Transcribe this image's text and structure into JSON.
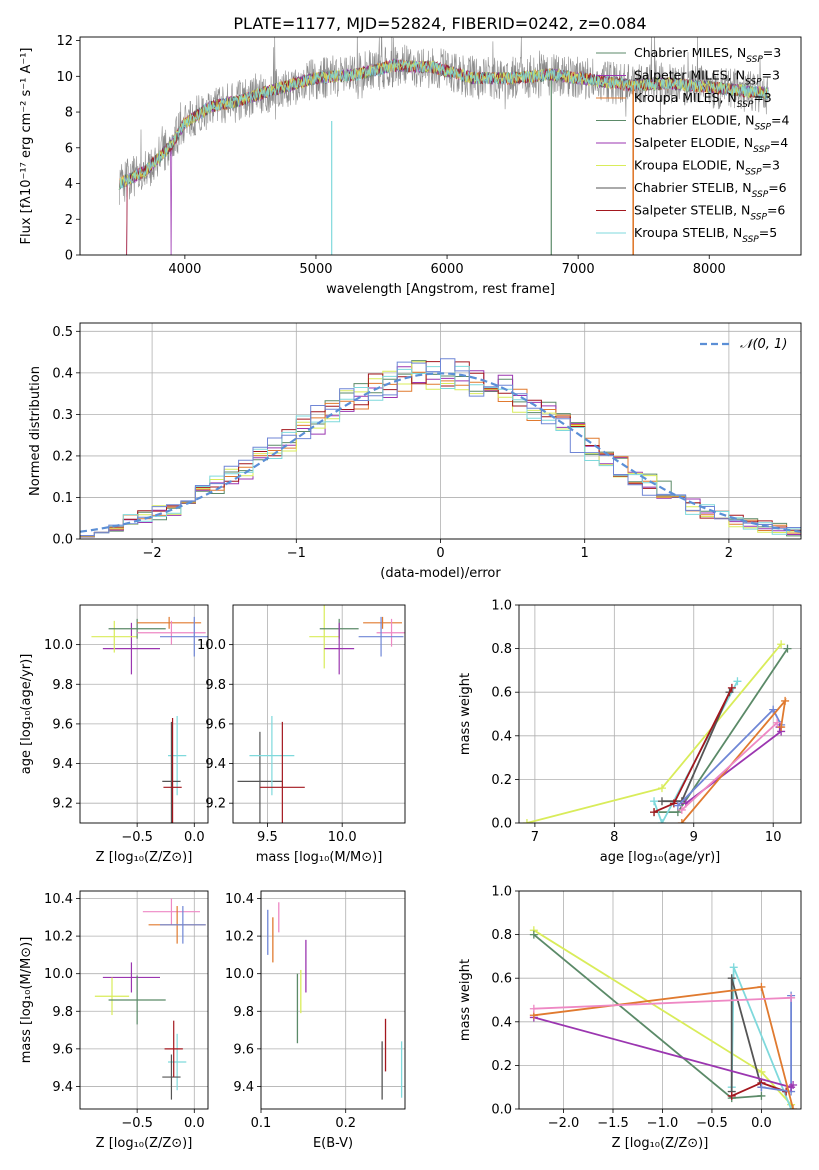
{
  "figure": {
    "title": "PLATE=1177, MJD=52824, FIBERID=0242, z=0.084"
  },
  "chart_data": [
    {
      "id": "spectrum",
      "type": "line",
      "xlabel": "wavelength [Angstrom, rest frame]",
      "ylabel": "Flux [fλ10⁻¹⁷ erg cm⁻² s⁻¹ A⁻¹]",
      "xlim": [
        3200,
        8700
      ],
      "ylim": [
        0,
        12.2
      ],
      "xticks": [
        4000,
        5000,
        6000,
        7000,
        8000
      ],
      "yticks": [
        0,
        2,
        4,
        6,
        8,
        10,
        12
      ],
      "grid": false,
      "legend_position": "right",
      "series": [
        {
          "name": "Chabrier MILES, N_SSP=3",
          "color": "#5b8a68"
        },
        {
          "name": "Salpeter MILES, N_SSP=3",
          "color": "#9b36b0"
        },
        {
          "name": "Kroupa MILES, N_SSP=3",
          "color": "#e07a2f"
        },
        {
          "name": "Chabrier ELODIE, N_SSP=4",
          "color": "#5b8a68"
        },
        {
          "name": "Salpeter ELODIE, N_SSP=4",
          "color": "#9b36b0"
        },
        {
          "name": "Kroupa ELODIE, N_SSP=3",
          "color": "#d9ec5a"
        },
        {
          "name": "Chabrier STELIB, N_SSP=6",
          "color": "#555555"
        },
        {
          "name": "Salpeter STELIB, N_SSP=6",
          "color": "#a3171e"
        },
        {
          "name": "Kroupa STELIB, N_SSP=5",
          "color": "#7fd9dc"
        }
      ],
      "continuum_shape": {
        "x": [
          3500,
          3700,
          3900,
          4000,
          4200,
          4400,
          4700,
          5000,
          5300,
          5600,
          5900,
          6200,
          6500,
          6800,
          7100,
          7400,
          7700,
          8000,
          8250,
          8500
        ],
        "y": [
          4.0,
          4.7,
          6.2,
          7.4,
          8.3,
          8.6,
          9.3,
          9.9,
          10.1,
          10.6,
          10.5,
          9.9,
          9.9,
          10.1,
          9.8,
          9.5,
          9.6,
          9.4,
          9.2,
          9.0
        ]
      }
    },
    {
      "id": "residuals",
      "type": "line",
      "xlabel": "(data-model)/error",
      "ylabel": "Normed distribution",
      "xlim": [
        -2.5,
        2.5
      ],
      "ylim": [
        0,
        0.52
      ],
      "xticks": [
        -2,
        -1,
        0,
        1,
        2
      ],
      "yticks": [
        0.0,
        0.1,
        0.2,
        0.3,
        0.4,
        0.5
      ],
      "grid": true,
      "legend": [
        "𝒩(0, 1)"
      ],
      "legend_position": "top-right",
      "gaussian": {
        "mean": 0,
        "sigma": 1,
        "color": "#5b8fd6"
      },
      "histogram_colors": [
        "#5b8a68",
        "#9b36b0",
        "#e07a2f",
        "#d9ec5a",
        "#a3171e",
        "#7fd9dc",
        "#6f86d6"
      ]
    },
    {
      "id": "age_vs_Z",
      "type": "scatter",
      "xlabel": "Z [log₁₀(Z/Z⊙)]",
      "ylabel": "age  [log₁₀(age/yr)]",
      "xlim": [
        -1.0,
        0.12
      ],
      "ylim": [
        9.1,
        10.2
      ],
      "xticks": [
        -0.5,
        0.0
      ],
      "yticks": [
        9.2,
        9.4,
        9.6,
        9.8,
        10.0
      ],
      "grid": true,
      "points": [
        {
          "x": -0.55,
          "y": 9.98,
          "xerr": 0.25,
          "yerr": 0.13,
          "color": "#9b36b0"
        },
        {
          "x": -0.7,
          "y": 10.04,
          "xerr": 0.2,
          "yerr": 0.08,
          "color": "#d9ec5a"
        },
        {
          "x": -0.5,
          "y": 10.08,
          "xerr": 0.25,
          "yerr": 0.05,
          "color": "#5b8a68"
        },
        {
          "x": -0.22,
          "y": 10.11,
          "xerr": 0.28,
          "yerr": 0.03,
          "color": "#e07a2f"
        },
        {
          "x": -0.2,
          "y": 10.06,
          "xerr": 0.3,
          "yerr": 0.06,
          "color": "#ee88c4"
        },
        {
          "x": 0.0,
          "y": 10.04,
          "xerr": 0.3,
          "yerr": 0.1,
          "color": "#6f86d6"
        },
        {
          "x": -0.15,
          "y": 9.44,
          "xerr": 0.08,
          "yerr": 0.2,
          "color": "#7fd9dc"
        },
        {
          "x": -0.2,
          "y": 9.31,
          "xerr": 0.08,
          "yerr": 0.3,
          "color": "#555555"
        },
        {
          "x": -0.19,
          "y": 9.28,
          "xerr": 0.08,
          "yerr": 0.35,
          "color": "#a3171e"
        }
      ]
    },
    {
      "id": "age_vs_mass",
      "type": "scatter",
      "xlabel": "mass [log₁₀(M/M⊙)]",
      "ylabel": "",
      "xlim": [
        9.27,
        10.42
      ],
      "ylim": [
        9.1,
        10.2
      ],
      "xticks": [
        9.5,
        10.0
      ],
      "yticks": [
        9.2,
        9.4,
        9.6,
        9.8,
        10.0
      ],
      "grid": true,
      "points": [
        {
          "x": 9.45,
          "y": 9.31,
          "xerr": 0.15,
          "yerr": 0.25,
          "color": "#555555"
        },
        {
          "x": 9.53,
          "y": 9.44,
          "xerr": 0.15,
          "yerr": 0.2,
          "color": "#7fd9dc"
        },
        {
          "x": 9.6,
          "y": 9.28,
          "xerr": 0.15,
          "yerr": 0.33,
          "color": "#a3171e"
        },
        {
          "x": 9.88,
          "y": 10.04,
          "xerr": 0.1,
          "yerr": 0.16,
          "color": "#d9ec5a"
        },
        {
          "x": 9.98,
          "y": 10.08,
          "xerr": 0.13,
          "yerr": 0.05,
          "color": "#5b8a68"
        },
        {
          "x": 10.27,
          "y": 10.11,
          "xerr": 0.13,
          "yerr": 0.03,
          "color": "#e07a2f"
        },
        {
          "x": 10.33,
          "y": 10.06,
          "xerr": 0.1,
          "yerr": 0.07,
          "color": "#ee88c4"
        },
        {
          "x": 10.26,
          "y": 10.04,
          "xerr": 0.15,
          "yerr": 0.1,
          "color": "#6f86d6"
        },
        {
          "x": 9.98,
          "y": 9.98,
          "xerr": 0.1,
          "yerr": 0.13,
          "color": "#9b36b0"
        }
      ]
    },
    {
      "id": "massweight_vs_age",
      "type": "line",
      "xlabel": "age  [log₁₀(age/yr)]",
      "ylabel": "mass weight",
      "xlim": [
        6.8,
        10.35
      ],
      "ylim": [
        0,
        1.0
      ],
      "xticks": [
        7,
        8,
        9,
        10
      ],
      "yticks": [
        0.0,
        0.2,
        0.4,
        0.6,
        0.8,
        1.0
      ],
      "grid": true,
      "series": [
        {
          "color": "#d9ec5a",
          "x": [
            6.9,
            8.6,
            10.1
          ],
          "y": [
            0.0,
            0.16,
            0.82
          ]
        },
        {
          "color": "#5b8a68",
          "x": [
            8.5,
            8.8,
            10.18
          ],
          "y": [
            0.05,
            0.05,
            0.8
          ]
        },
        {
          "color": "#7fd9dc",
          "x": [
            8.5,
            8.6,
            9.55
          ],
          "y": [
            0.1,
            0.0,
            0.65
          ]
        },
        {
          "color": "#555555",
          "x": [
            8.6,
            8.85,
            9.45
          ],
          "y": [
            0.1,
            0.1,
            0.6
          ]
        },
        {
          "color": "#a3171e",
          "x": [
            8.5,
            8.75,
            9.48
          ],
          "y": [
            0.05,
            0.09,
            0.62
          ]
        },
        {
          "color": "#6f86d6",
          "x": [
            8.8,
            10.0,
            10.1
          ],
          "y": [
            0.08,
            0.52,
            0.45
          ]
        },
        {
          "color": "#9b36b0",
          "x": [
            8.9,
            10.1,
            10.08
          ],
          "y": [
            0.09,
            0.42,
            0.44
          ]
        },
        {
          "color": "#e07a2f",
          "x": [
            8.85,
            10.15,
            10.1
          ],
          "y": [
            0.0,
            0.56,
            0.44
          ]
        },
        {
          "color": "#ee88c4",
          "x": [
            8.85,
            10.05
          ],
          "y": [
            0.06,
            0.46
          ]
        }
      ]
    },
    {
      "id": "mass_vs_Z",
      "type": "scatter",
      "xlabel": "Z [log₁₀(Z/Z⊙)]",
      "ylabel": "mass [log₁₀(M/M⊙)]",
      "xlim": [
        -1.0,
        0.12
      ],
      "ylim": [
        9.28,
        10.44
      ],
      "xticks": [
        -0.5,
        0.0
      ],
      "yticks": [
        9.4,
        9.6,
        9.8,
        10.0,
        10.2,
        10.4
      ],
      "grid": true,
      "points": [
        {
          "x": -0.55,
          "y": 9.98,
          "xerr": 0.25,
          "yerr": 0.08,
          "color": "#9b36b0"
        },
        {
          "x": -0.72,
          "y": 9.88,
          "xerr": 0.15,
          "yerr": 0.1,
          "color": "#d9ec5a"
        },
        {
          "x": -0.5,
          "y": 9.86,
          "xerr": 0.25,
          "yerr": 0.13,
          "color": "#5b8a68"
        },
        {
          "x": -0.2,
          "y": 10.33,
          "xerr": 0.25,
          "yerr": 0.07,
          "color": "#ee88c4"
        },
        {
          "x": -0.15,
          "y": 10.26,
          "xerr": 0.25,
          "yerr": 0.1,
          "color": "#e07a2f"
        },
        {
          "x": -0.1,
          "y": 10.26,
          "xerr": 0.2,
          "yerr": 0.1,
          "color": "#6f86d6"
        },
        {
          "x": -0.15,
          "y": 9.53,
          "xerr": 0.08,
          "yerr": 0.15,
          "color": "#7fd9dc"
        },
        {
          "x": -0.2,
          "y": 9.45,
          "xerr": 0.08,
          "yerr": 0.12,
          "color": "#555555"
        },
        {
          "x": -0.18,
          "y": 9.6,
          "xerr": 0.08,
          "yerr": 0.15,
          "color": "#a3171e"
        }
      ]
    },
    {
      "id": "mass_vs_EBV",
      "type": "scatter",
      "xlabel": "E(B-V)",
      "ylabel": "",
      "xlim": [
        0.1,
        0.27
      ],
      "ylim": [
        9.28,
        10.44
      ],
      "xticks": [
        0.1,
        0.2
      ],
      "yticks": [
        9.4,
        9.6,
        9.8,
        10.0,
        10.2,
        10.4
      ],
      "grid": true,
      "vlines": [
        {
          "x": 0.108,
          "y1": 10.1,
          "y2": 10.34,
          "color": "#6f86d6"
        },
        {
          "x": 0.114,
          "y1": 10.06,
          "y2": 10.3,
          "color": "#e07a2f"
        },
        {
          "x": 0.121,
          "y1": 10.22,
          "y2": 10.38,
          "color": "#ee88c4"
        },
        {
          "x": 0.143,
          "y1": 9.63,
          "y2": 10.0,
          "color": "#5b8a68"
        },
        {
          "x": 0.147,
          "y1": 9.79,
          "y2": 10.02,
          "color": "#d9ec5a"
        },
        {
          "x": 0.153,
          "y1": 9.9,
          "y2": 10.18,
          "color": "#9b36b0"
        },
        {
          "x": 0.243,
          "y1": 9.33,
          "y2": 9.64,
          "color": "#555555"
        },
        {
          "x": 0.247,
          "y1": 9.48,
          "y2": 9.76,
          "color": "#a3171e"
        },
        {
          "x": 0.266,
          "y1": 9.34,
          "y2": 9.64,
          "color": "#7fd9dc"
        }
      ]
    },
    {
      "id": "massweight_vs_Z",
      "type": "line",
      "xlabel": "Z [log₁₀(Z/Z⊙)]",
      "ylabel": "mass weight",
      "xlim": [
        -2.45,
        0.4
      ],
      "ylim": [
        0,
        1.0
      ],
      "xticks": [
        -2.0,
        -1.5,
        -1.0,
        -0.5,
        0.0
      ],
      "yticks": [
        0.0,
        0.2,
        0.4,
        0.6,
        0.8,
        1.0
      ],
      "grid": true,
      "series": [
        {
          "color": "#d9ec5a",
          "x": [
            -2.3,
            0.0,
            0.3
          ],
          "y": [
            0.82,
            0.17,
            0.02
          ]
        },
        {
          "color": "#5b8a68",
          "x": [
            -2.3,
            -0.3,
            0.0
          ],
          "y": [
            0.8,
            0.05,
            0.06
          ]
        },
        {
          "color": "#7fd9dc",
          "x": [
            -0.3,
            -0.28,
            0.3
          ],
          "y": [
            0.1,
            0.65,
            0.0
          ]
        },
        {
          "color": "#555555",
          "x": [
            -0.3,
            -0.3,
            0.0
          ],
          "y": [
            0.08,
            0.6,
            0.1
          ]
        },
        {
          "color": "#a3171e",
          "x": [
            -0.3,
            0.0,
            0.25
          ],
          "y": [
            0.06,
            0.12,
            0.08
          ]
        },
        {
          "color": "#6f86d6",
          "x": [
            0.3,
            0.3,
            0.0
          ],
          "y": [
            0.52,
            0.08,
            0.1
          ]
        },
        {
          "color": "#9b36b0",
          "x": [
            -2.3,
            0.3,
            0.32
          ],
          "y": [
            0.42,
            0.1,
            0.11
          ]
        },
        {
          "color": "#e07a2f",
          "x": [
            -2.3,
            0.0,
            0.32
          ],
          "y": [
            0.43,
            0.56,
            0.0
          ]
        },
        {
          "color": "#ee88c4",
          "x": [
            -2.3,
            0.3
          ],
          "y": [
            0.46,
            0.51
          ]
        }
      ]
    }
  ]
}
